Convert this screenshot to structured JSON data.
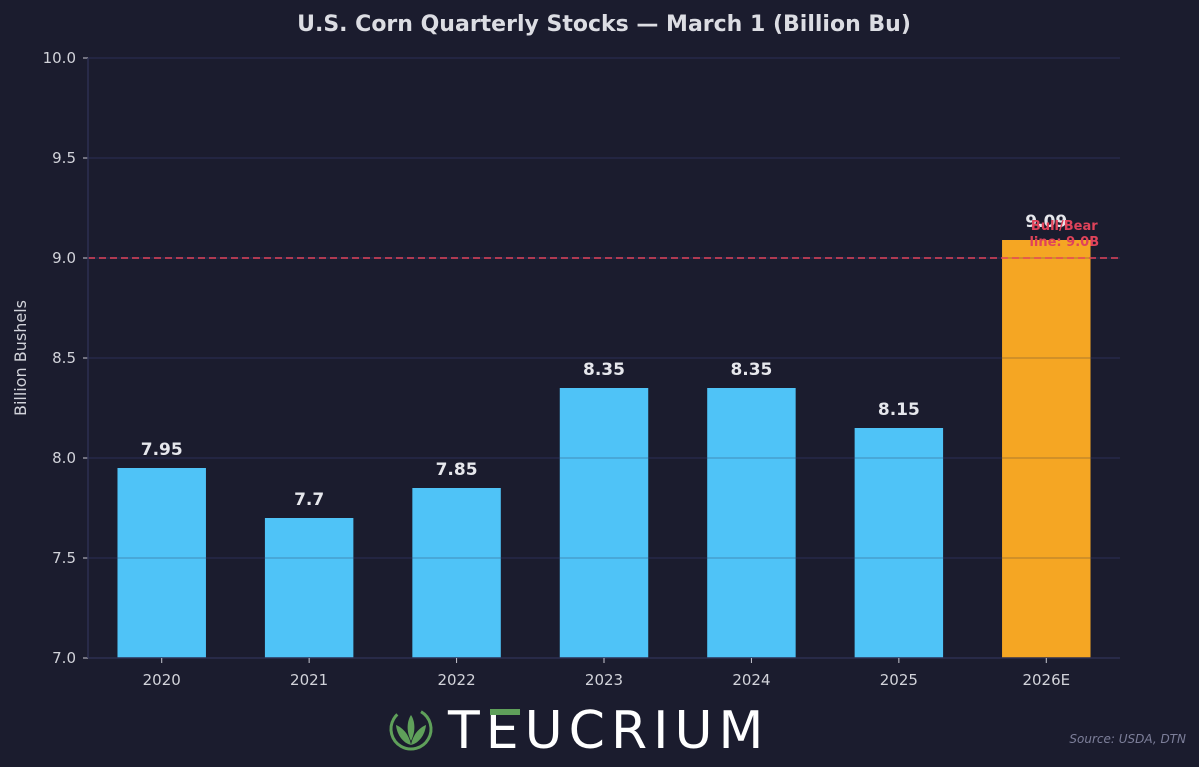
{
  "chart_data": {
    "type": "bar",
    "title": "U.S. Corn Quarterly Stocks — March 1 (Billion Bu)",
    "ylabel": "Billion Bushels",
    "xlabel": "",
    "categories": [
      "2020",
      "2021",
      "2022",
      "2023",
      "2024",
      "2025",
      "2026E"
    ],
    "values": [
      7.95,
      7.7,
      7.85,
      8.35,
      8.35,
      8.15,
      9.09
    ],
    "data_labels": [
      "7.95",
      "7.7",
      "7.85",
      "8.35",
      "8.35",
      "8.15",
      "9.09"
    ],
    "ylim": [
      7.0,
      10.0
    ],
    "yticks": [
      "7.0",
      "7.5",
      "8.0",
      "8.5",
      "9.0",
      "9.5",
      "10.0"
    ],
    "colors": [
      "#4fc3f7",
      "#4fc3f7",
      "#4fc3f7",
      "#4fc3f7",
      "#4fc3f7",
      "#4fc3f7",
      "#f5a623"
    ],
    "reference_line": {
      "value": 9.0,
      "color": "#e0435a",
      "style": "dashed"
    },
    "annotation": {
      "lines": [
        "Bull/Bear",
        "line: 9.0B"
      ],
      "color": "#e0435a"
    },
    "grid": true,
    "legend": "none"
  },
  "source_text": "Source: USDA, DTN",
  "brand": {
    "name": "TEUCRIUM",
    "icon": "leaf-logo-icon",
    "accent_color": "#5fa05a"
  }
}
